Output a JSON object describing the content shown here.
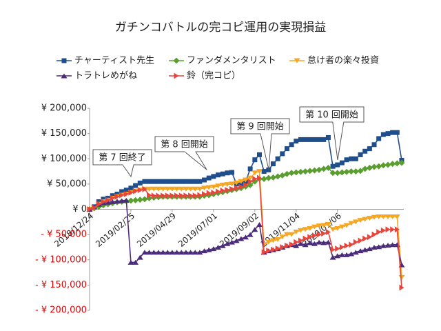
{
  "chart_data": {
    "type": "line",
    "title": "ガチンコバトルの完コピ運用の実現損益",
    "categories": [
      "2018/12/24",
      null,
      null,
      null,
      null,
      null,
      null,
      null,
      null,
      "2019/02/25",
      null,
      null,
      null,
      null,
      null,
      null,
      null,
      null,
      "2019/04/29",
      null,
      null,
      null,
      null,
      null,
      null,
      null,
      null,
      "2019/07/01",
      null,
      null,
      null,
      null,
      null,
      null,
      null,
      null,
      "2019/09/02",
      null,
      null,
      null,
      null,
      null,
      null,
      null,
      null,
      "2019/11/04",
      null,
      null,
      null,
      null,
      null,
      null,
      null,
      null,
      "2020/01/06",
      null,
      null,
      null,
      null,
      null,
      null,
      null,
      null,
      null,
      null,
      null,
      null,
      null,
      null
    ],
    "ylim": [
      -200000,
      200000
    ],
    "yticks": [
      {
        "value": -200000,
        "label": "- ¥ 200,000"
      },
      {
        "value": -150000,
        "label": "- ¥ 150,000"
      },
      {
        "value": -100000,
        "label": "- ¥ 100,000"
      },
      {
        "value": -50000,
        "label": "- ¥ 50,000"
      },
      {
        "value": 0,
        "label": "¥ 0"
      },
      {
        "value": 50000,
        "label": "¥ 50,000"
      },
      {
        "value": 100000,
        "label": "¥ 100,000"
      },
      {
        "value": 150000,
        "label": "¥ 150,000"
      },
      {
        "value": 200000,
        "label": "¥ 200,000"
      }
    ],
    "negative_tick_color": "#e00000",
    "grid": false,
    "legend": "top",
    "annotations": [
      "第 7 回終了",
      "第 8 回開始",
      "第 9 回開始",
      "第 10 回開始"
    ],
    "series": [
      {
        "name": "チャーティスト先生",
        "color": "#1f4e8c",
        "marker": "square",
        "values": [
          0,
          5000,
          15000,
          20000,
          22000,
          27000,
          30000,
          35000,
          38000,
          42000,
          47000,
          52000,
          55000,
          55000,
          55000,
          55000,
          55000,
          55000,
          55000,
          55000,
          55000,
          55000,
          55000,
          55000,
          55000,
          58000,
          62000,
          65000,
          68000,
          70000,
          72000,
          73000,
          50000,
          50000,
          55000,
          80000,
          98000,
          108000,
          75000,
          78000,
          90000,
          100000,
          110000,
          120000,
          128000,
          135000,
          138000,
          138000,
          138000,
          138000,
          138000,
          138000,
          142000,
          85000,
          88000,
          92000,
          98000,
          100000,
          100000,
          108000,
          115000,
          120000,
          128000,
          140000,
          148000,
          150000,
          152000,
          152000,
          97000
        ]
      },
      {
        "name": "ファンダメンタリスト",
        "color": "#5a9e2f",
        "marker": "diamond",
        "values": [
          0,
          2000,
          5000,
          8000,
          10000,
          12000,
          14000,
          15000,
          16000,
          17000,
          18000,
          19000,
          20000,
          22000,
          23000,
          24000,
          25000,
          25000,
          25000,
          25000,
          25000,
          25000,
          25000,
          25000,
          25000,
          27000,
          28000,
          30000,
          32000,
          34000,
          36000,
          38000,
          40000,
          42000,
          45000,
          48000,
          55000,
          60000,
          60000,
          62000,
          63000,
          65000,
          67000,
          70000,
          72000,
          73000,
          74000,
          75000,
          76000,
          77000,
          78000,
          80000,
          82000,
          72000,
          72000,
          73000,
          74000,
          75000,
          75000,
          76000,
          80000,
          82000,
          84000,
          85000,
          87000,
          88000,
          90000,
          91000,
          92000
        ]
      },
      {
        "name": "怠け者の楽々投資",
        "color": "#f5a623",
        "marker": "triangle-down",
        "values": [
          0,
          3000,
          10000,
          15000,
          18000,
          22000,
          25000,
          28000,
          30000,
          33000,
          36000,
          38000,
          40000,
          40000,
          40000,
          40000,
          40000,
          40000,
          40000,
          40000,
          40000,
          40000,
          40000,
          40000,
          40000,
          42000,
          43000,
          44000,
          46000,
          48000,
          49000,
          50000,
          52000,
          55000,
          58000,
          62000,
          72000,
          75000,
          -70000,
          -65000,
          -62000,
          -60000,
          -55000,
          -50000,
          -50000,
          -45000,
          -42000,
          -40000,
          -38000,
          -35000,
          -33000,
          -32000,
          -30000,
          -40000,
          -38000,
          -35000,
          -32000,
          -28000,
          -25000,
          -22000,
          -20000,
          -18000,
          -16000,
          -15000,
          -15000,
          -15000,
          -15000,
          -15000,
          -135000
        ]
      },
      {
        "name": "トラトレめがね",
        "color": "#4b2c7a",
        "marker": "triangle-up",
        "values": [
          0,
          5000,
          10000,
          13000,
          14000,
          15000,
          16000,
          17000,
          18000,
          -105000,
          -105000,
          -95000,
          -85000,
          -85000,
          -85000,
          -85000,
          -85000,
          -85000,
          -85000,
          -85000,
          -85000,
          -85000,
          -85000,
          -85000,
          -85000,
          -82000,
          -80000,
          -78000,
          -75000,
          -72000,
          -68000,
          -65000,
          -62000,
          -58000,
          -55000,
          -50000,
          -40000,
          -30000,
          -85000,
          -82000,
          -80000,
          -78000,
          -75000,
          -72000,
          -70000,
          -72000,
          -68000,
          -70000,
          -66000,
          -68000,
          -65000,
          -66000,
          -65000,
          -95000,
          -92000,
          -90000,
          -90000,
          -88000,
          -85000,
          -82000,
          -80000,
          -78000,
          -75000,
          -74000,
          -72000,
          -71000,
          -70000,
          -70000,
          -110000
        ]
      },
      {
        "name": "鈴（完コピ）",
        "color": "#e8453c",
        "marker": "triangle-right",
        "values": [
          0,
          3000,
          10000,
          15000,
          18000,
          22000,
          25000,
          28000,
          30000,
          33000,
          36000,
          38000,
          40000,
          28000,
          27000,
          27000,
          27000,
          27000,
          27000,
          27000,
          27000,
          27000,
          27000,
          27000,
          28000,
          30000,
          32000,
          33000,
          35000,
          37000,
          38000,
          40000,
          42000,
          44000,
          48000,
          55000,
          60000,
          62000,
          -85000,
          -82000,
          -80000,
          -78000,
          -75000,
          -72000,
          -70000,
          -65000,
          -62000,
          -58000,
          -55000,
          -52000,
          -50000,
          -48000,
          -45000,
          -80000,
          -78000,
          -75000,
          -72000,
          -70000,
          -65000,
          -62000,
          -58000,
          -55000,
          -50000,
          -45000,
          -42000,
          -40000,
          -40000,
          -40000,
          -155000
        ]
      }
    ]
  }
}
